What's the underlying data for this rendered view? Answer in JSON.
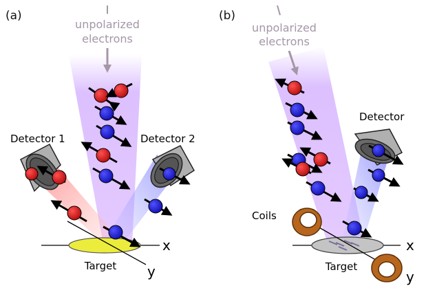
{
  "panel_a": {
    "label": "(a)",
    "beam_label_line1": "unpolarized",
    "beam_label_line2": "electrons",
    "detector1_label": "Detector 1",
    "detector2_label": "Detector 2",
    "target_label": "Target",
    "x_axis_label": "x",
    "y_axis_label": "y"
  },
  "panel_b": {
    "label": "(b)",
    "beam_label_line1": "unpolarized",
    "beam_label_line2": "electrons",
    "detector_label": "Detector",
    "coils_label": "Coils",
    "target_label": "Target",
    "x_axis_label": "x",
    "y_axis_label": "y"
  },
  "colors": {
    "beam_label": "#a596a8",
    "spin_red": "#d01616",
    "spin_blue": "#2020d0",
    "incident_beam": "#b46eff",
    "scatter_red": "#ff8080",
    "scatter_blue": "#8c8cff",
    "target_a": "#ecec3c",
    "target_b": "#c4c4c4",
    "coil": "#b8661e",
    "detector": "#9a9a9a"
  }
}
